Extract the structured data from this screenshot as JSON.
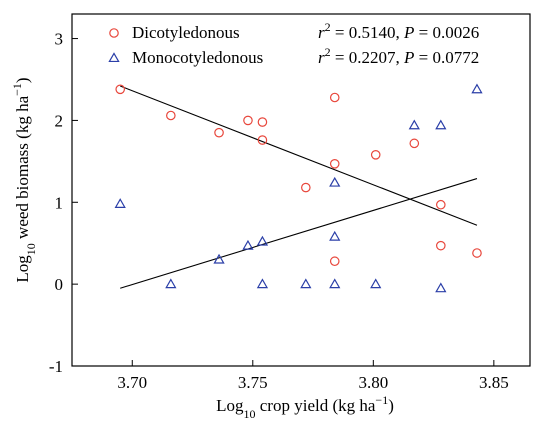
{
  "chart_data": {
    "type": "scatter",
    "xlabel_prefix": "Log",
    "xlabel_sub": "10",
    "xlabel_main": " crop yield (kg ha",
    "xlabel_sup": "−1",
    "xlabel_end": ")",
    "ylabel_prefix": "Log",
    "ylabel_sub": "10",
    "ylabel_main": " weed biomass (kg ha",
    "ylabel_sup": "−1",
    "ylabel_end": ")",
    "xlim": [
      3.675,
      3.865
    ],
    "ylim": [
      -1,
      3.3
    ],
    "xticks": [
      {
        "value": 3.7,
        "label": "3.70"
      },
      {
        "value": 3.75,
        "label": "3.75"
      },
      {
        "value": 3.8,
        "label": "3.80"
      },
      {
        "value": 3.85,
        "label": "3.85"
      }
    ],
    "yticks": [
      {
        "value": -1,
        "label": "-1"
      },
      {
        "value": 0,
        "label": "0"
      },
      {
        "value": 1,
        "label": "1"
      },
      {
        "value": 2,
        "label": "2"
      },
      {
        "value": 3,
        "label": "3"
      }
    ],
    "legend_position": "top",
    "series": [
      {
        "name": "Dicotyledonous",
        "marker": "circle",
        "color": "#e8473c",
        "r2_label": "r",
        "r2_sup": "2",
        "r2_value": " = 0.5140, ",
        "p_label": "P",
        "p_value": " = 0.0026",
        "points": [
          [
            3.695,
            2.38
          ],
          [
            3.716,
            2.06
          ],
          [
            3.736,
            1.85
          ],
          [
            3.748,
            2.0
          ],
          [
            3.754,
            1.98
          ],
          [
            3.754,
            1.76
          ],
          [
            3.772,
            1.18
          ],
          [
            3.784,
            2.28
          ],
          [
            3.784,
            1.47
          ],
          [
            3.784,
            0.28
          ],
          [
            3.801,
            1.58
          ],
          [
            3.817,
            1.72
          ],
          [
            3.828,
            0.97
          ],
          [
            3.828,
            0.47
          ],
          [
            3.843,
            0.38
          ]
        ],
        "fit": [
          [
            3.695,
            2.42
          ],
          [
            3.843,
            0.72
          ]
        ]
      },
      {
        "name": "Monocotyledonous",
        "marker": "triangle",
        "color": "#2b3fa8",
        "r2_label": "r",
        "r2_sup": "2",
        "r2_value": " = 0.2207, ",
        "p_label": "P",
        "p_value": " = 0.0772",
        "points": [
          [
            3.695,
            0.98
          ],
          [
            3.716,
            0.0
          ],
          [
            3.736,
            0.3
          ],
          [
            3.748,
            0.47
          ],
          [
            3.754,
            0.52
          ],
          [
            3.754,
            0.0
          ],
          [
            3.772,
            0.0
          ],
          [
            3.784,
            1.24
          ],
          [
            3.784,
            0.58
          ],
          [
            3.784,
            0.0
          ],
          [
            3.801,
            0.0
          ],
          [
            3.817,
            1.94
          ],
          [
            3.828,
            1.94
          ],
          [
            3.828,
            -0.05
          ],
          [
            3.843,
            2.38
          ]
        ],
        "fit": [
          [
            3.695,
            -0.05
          ],
          [
            3.843,
            1.29
          ]
        ]
      }
    ]
  }
}
